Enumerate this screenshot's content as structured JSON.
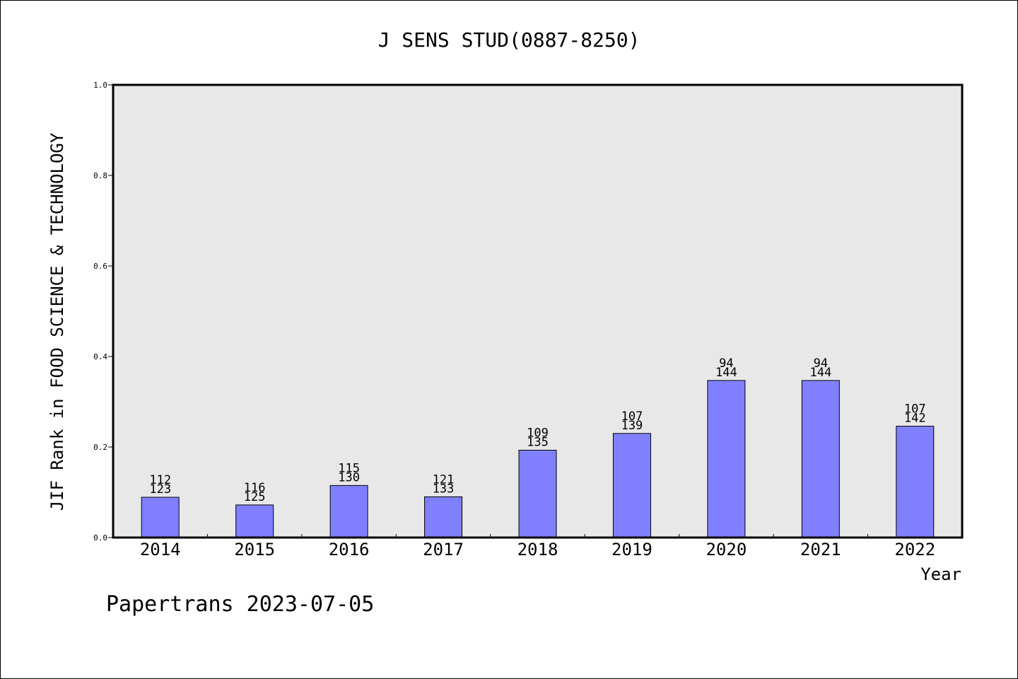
{
  "chart_data": {
    "type": "bar",
    "title": "J SENS STUD(0887-8250)",
    "xlabel": "Year",
    "ylabel": "JIF Rank in FOOD SCIENCE & TECHNOLOGY",
    "ylim": [
      0,
      1.0
    ],
    "yticks": [
      "0.0",
      "0.2",
      "0.4",
      "0.6",
      "0.8",
      "1.0"
    ],
    "categories": [
      "2014",
      "2015",
      "2016",
      "2017",
      "2018",
      "2019",
      "2020",
      "2021",
      "2022"
    ],
    "values": [
      0.089,
      0.072,
      0.115,
      0.09,
      0.193,
      0.23,
      0.347,
      0.347,
      0.246
    ],
    "rank": [
      "112",
      "116",
      "115",
      "121",
      "109",
      "107",
      "94",
      "94",
      "107"
    ],
    "total": [
      "123",
      "125",
      "130",
      "133",
      "135",
      "139",
      "144",
      "144",
      "142"
    ],
    "bar_color": "#8080ff",
    "plot_background": "#e8e8e8",
    "grid": false,
    "footer": "Papertrans 2023-07-05"
  }
}
